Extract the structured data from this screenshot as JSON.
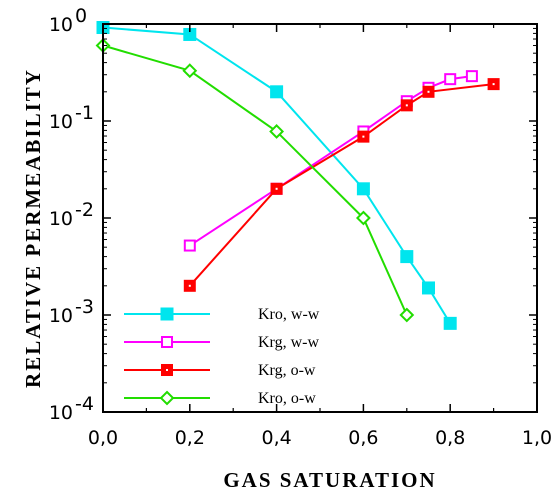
{
  "chart_data": {
    "type": "line",
    "title": "",
    "xlabel": "GAS  SATURATION",
    "ylabel": "RELATIVE  PERMEABILITY",
    "xlim": [
      0.0,
      1.0
    ],
    "ylim": [
      0.0001,
      1
    ],
    "y_scale": "log",
    "x_ticks": [
      "0,0",
      "0,2",
      "0,4",
      "0,6",
      "0,8",
      "1,0"
    ],
    "x_tick_values": [
      0.0,
      0.2,
      0.4,
      0.6,
      0.8,
      1.0
    ],
    "y_ticks": [
      {
        "value": 1,
        "base": "10",
        "exp": "0"
      },
      {
        "value": 0.1,
        "base": "10",
        "exp": "-1"
      },
      {
        "value": 0.01,
        "base": "10",
        "exp": "-2"
      },
      {
        "value": 0.001,
        "base": "10",
        "exp": "-3"
      },
      {
        "value": 0.0001,
        "base": "10",
        "exp": "-4"
      }
    ],
    "grid": false,
    "legend_position": "bottom-left",
    "series": [
      {
        "name": "Kro, w-w",
        "color": "#00e5ee",
        "marker": "filled-square",
        "x": [
          0.0,
          0.2,
          0.4,
          0.6,
          0.7,
          0.75,
          0.8
        ],
        "y": [
          0.92,
          0.78,
          0.2,
          0.02,
          0.004,
          0.0019,
          0.00082
        ]
      },
      {
        "name": "Krg, w-w",
        "color": "#ff00ff",
        "marker": "open-square",
        "x": [
          0.2,
          0.4,
          0.6,
          0.7,
          0.75,
          0.8,
          0.85
        ],
        "y": [
          0.0052,
          0.02,
          0.078,
          0.16,
          0.22,
          0.27,
          0.29
        ]
      },
      {
        "name": "Krg, o-w",
        "color": "#ff0000",
        "marker": "dotted-square",
        "x": [
          0.2,
          0.4,
          0.6,
          0.7,
          0.75,
          0.9
        ],
        "y": [
          0.002,
          0.02,
          0.069,
          0.145,
          0.2,
          0.24
        ]
      },
      {
        "name": "Kro, o-w",
        "color": "#22dd00",
        "marker": "open-diamond",
        "x": [
          0.0,
          0.2,
          0.4,
          0.6,
          0.7
        ],
        "y": [
          0.6,
          0.33,
          0.078,
          0.01,
          0.001
        ]
      }
    ]
  }
}
